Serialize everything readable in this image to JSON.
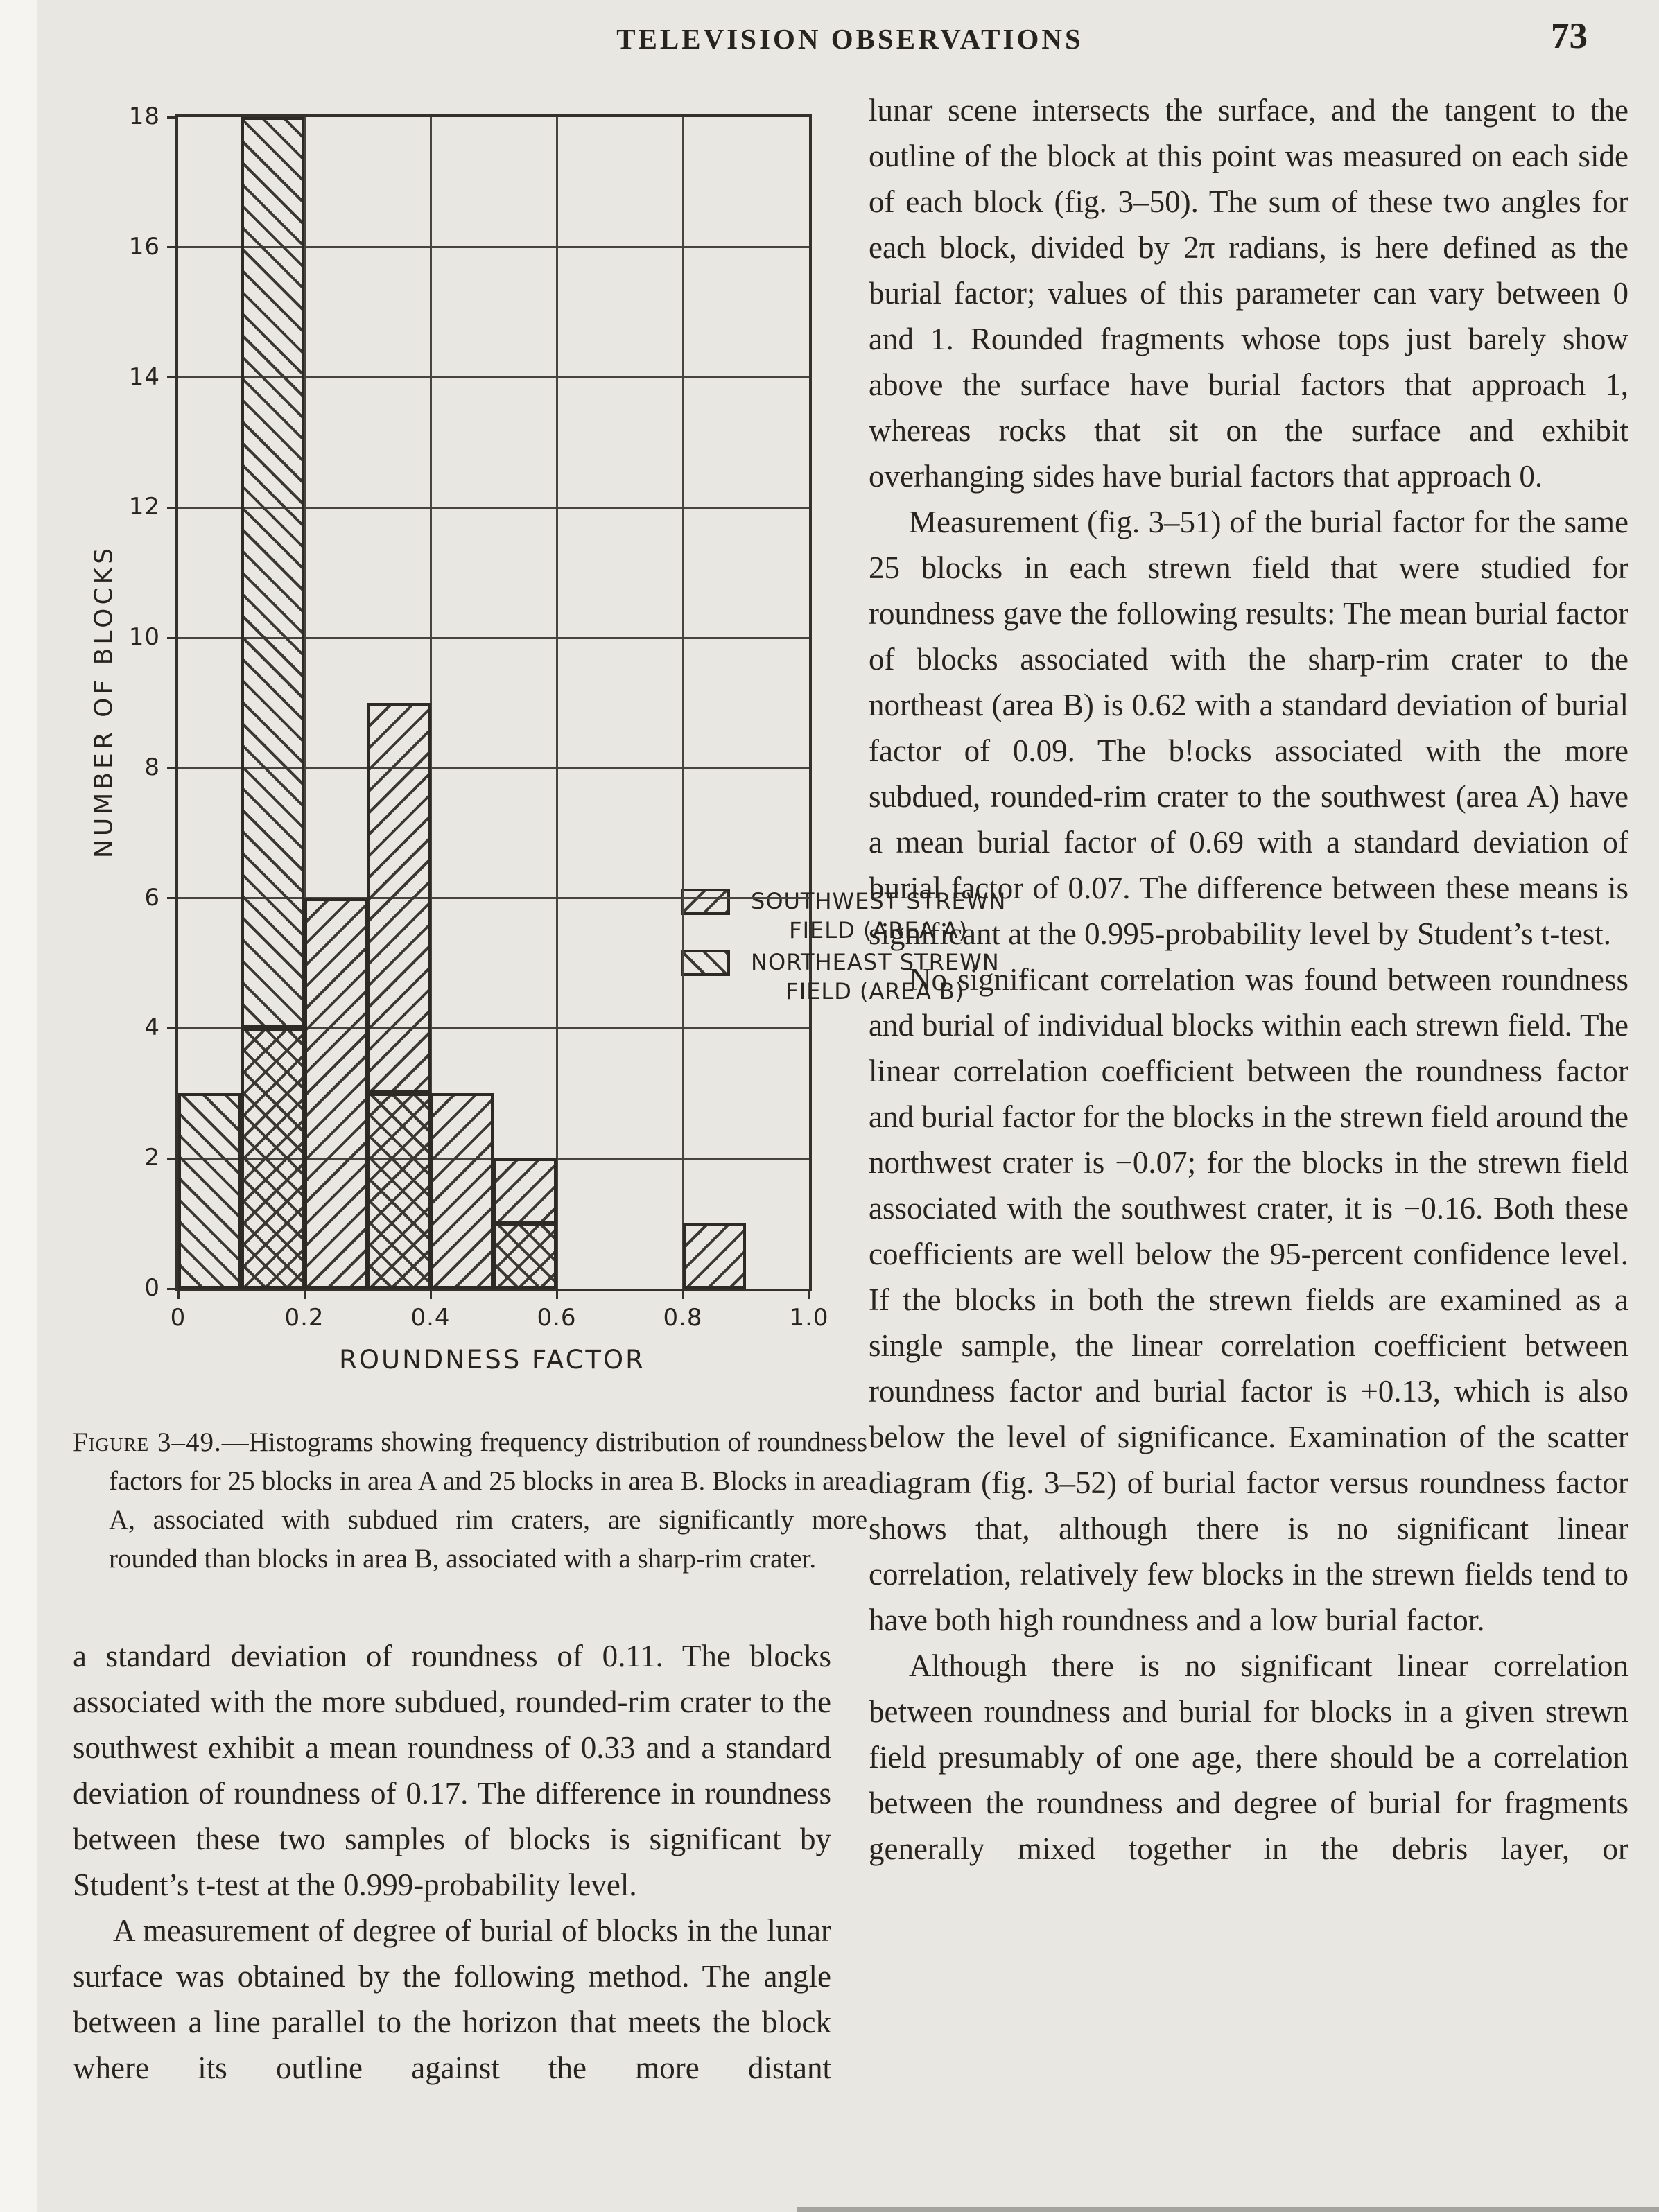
{
  "page": {
    "header": "TELEVISION OBSERVATIONS",
    "page_number": "73"
  },
  "chart_data": {
    "type": "bar",
    "subtype": "overlapping-histograms",
    "title": "",
    "xlabel": "ROUNDNESS FACTOR",
    "ylabel": "NUMBER OF BLOCKS",
    "xlim": [
      0,
      1.0
    ],
    "ylim": [
      0,
      18
    ],
    "x_ticks": [
      "0",
      "0.2",
      "0.4",
      "0.6",
      "0.8",
      "1.0"
    ],
    "y_ticks": [
      "0",
      "2",
      "4",
      "6",
      "8",
      "10",
      "12",
      "14",
      "16",
      "18"
    ],
    "grid": true,
    "bin_width": 0.1,
    "bin_edges": [
      0,
      0.1,
      0.2,
      0.3,
      0.4,
      0.5,
      0.6,
      0.7,
      0.8,
      0.9,
      1.0
    ],
    "series": [
      {
        "name": "SOUTHWEST STREWN FIELD (AREA A)",
        "hatch": "///",
        "values": [
          0,
          4,
          6,
          9,
          3,
          2,
          0,
          0,
          1,
          0
        ]
      },
      {
        "name": "NORTHEAST STREWN FIELD (AREA B)",
        "hatch": "\\\\\\",
        "values": [
          3,
          18,
          0,
          3,
          0,
          1,
          0,
          0,
          0,
          0
        ]
      }
    ],
    "legend_position": "center-right",
    "note": "overlap of the two histograms is shown cross-hatched",
    "line_color": "#34312c"
  },
  "legend": {
    "a1": "SOUTHWEST STREWN",
    "a2": "FIELD (AREA A)",
    "b1": "NORTHEAST STREWN",
    "b2": "FIELD (AREA B)"
  },
  "caption": {
    "label": "Figure 3–49.",
    "text": "—Histograms showing frequency distribution of roundness factors for 25 blocks in area A and 25 blocks in area B. Blocks in area A, associated with subdued rim craters, are significantly more rounded than blocks in area B, associated with a sharp-rim crater."
  },
  "left_column": {
    "para1": "a standard deviation of roundness of 0.11. The blocks associated with the more subdued, rounded-rim crater to the southwest exhibit a mean roundness of 0.33 and a standard deviation of roundness of 0.17. The difference in roundness between these two samples of blocks is significant by Student’s t-test at the 0.999-probability level.",
    "para2": "A measurement of degree of burial of blocks in the lunar surface was obtained by the following method. The angle between a line parallel to the horizon that meets the block where its outline against the more distant"
  },
  "right_column": {
    "para1": "lunar scene intersects the surface, and the tangent to the outline of the block at this point was measured on each side of each block (fig. 3–50). The sum of these two angles for each block, divided by 2π radians, is here defined as the burial factor; values of this parameter can vary between 0 and 1. Rounded fragments whose tops just barely show above the surface have burial factors that approach 1, whereas rocks that sit on the surface and exhibit overhanging sides have burial factors that approach 0.",
    "para2": "Measurement (fig. 3–51) of the burial factor for the same 25 blocks in each strewn field that were studied for roundness gave the following results: The mean burial factor of blocks associated with the sharp-rim crater to the northeast (area B) is 0.62 with a standard deviation of burial factor of 0.09. The b!ocks associated with the more subdued, rounded-rim crater to the southwest (area A) have a mean burial factor of 0.69 with a standard deviation of burial factor of 0.07. The difference between these means is significant at the 0.995-probability level by Student’s t-test.",
    "para3": "No significant correlation was found between roundness and burial of individual blocks within each strewn field. The linear correlation coefficient between the roundness factor and burial factor for the blocks in the strewn field around the northwest crater is −0.07; for the blocks in the strewn field associated with the southwest crater, it is −0.16. Both these coefficients are well below the 95-percent confidence level. If the blocks in both the strewn fields are examined as a single sample, the linear correlation coefficient between roundness factor and burial factor is +0.13, which is also below the level of significance. Examination of the scatter diagram (fig. 3–52) of burial factor versus roundness factor shows that, although there is no significant linear correlation, relatively few blocks in the strewn fields tend to have both high roundness and a low burial factor.",
    "para4": "Although there is no significant linear correlation between roundness and burial for blocks in a given strewn field presumably of one age, there should be a correlation between the roundness and degree of burial for fragments generally mixed together in the debris layer, or"
  }
}
